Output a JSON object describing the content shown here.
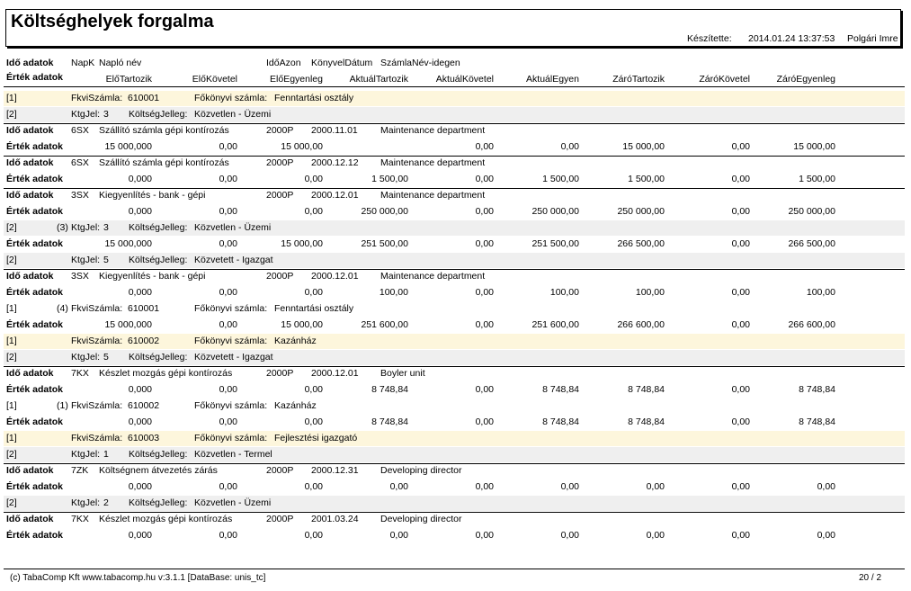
{
  "header": {
    "title": "Költséghelyek forgalma",
    "created_label": "Készítette:",
    "created_at": "2014.01.24 13:37:53",
    "created_by": "Polgári Imre"
  },
  "columns": {
    "row1": [
      "Idő adatok",
      "NapK",
      "Napló név",
      "IdőAzon",
      "KönyvelDátum",
      "SzámlaNév-idegen"
    ],
    "row2": [
      "Érték adatok",
      "ElőTartozik",
      "ElőKövetel",
      "ElőEgyenleg",
      "AktuálTartozik",
      "AktuálKövetel",
      "AktuálEgyen",
      "ZáróTartozik",
      "ZáróKövetel",
      "ZáróEgyenleg"
    ]
  },
  "rows": [
    {
      "type": "group1",
      "level": "[1]",
      "count": "",
      "k1": "FkviSzámla:",
      "v1": "610001",
      "k2": "Főkönyvi számla:",
      "v2": "Fenntartási osztály"
    },
    {
      "type": "group2",
      "level": "[2]",
      "count": "",
      "k1": "KtgJel:",
      "v1": "3",
      "k2": "KöltségJelleg:",
      "v2": "Közvetlen - Üzemi"
    },
    {
      "type": "ido",
      "label": "Idő adatok",
      "napk": "6SX",
      "nev": "Szállító számla gépi kontírozás",
      "azon": "2000P",
      "datum": "2000.11.01",
      "idegen": "Maintenance department"
    },
    {
      "type": "ertek",
      "label": "Érték adatok",
      "vals": [
        "15 000,000",
        "0,00",
        "15 000,00",
        "",
        "0,00",
        "0,00",
        "15 000,00",
        "0,00",
        "15 000,00"
      ]
    },
    {
      "type": "ido",
      "label": "Idő adatok",
      "napk": "6SX",
      "nev": "Szállító számla gépi kontírozás",
      "azon": "2000P",
      "datum": "2000.12.12",
      "idegen": "Maintenance department"
    },
    {
      "type": "ertek",
      "label": "Érték adatok",
      "vals": [
        "0,000",
        "0,00",
        "0,00",
        "1 500,00",
        "0,00",
        "1 500,00",
        "1 500,00",
        "0,00",
        "1 500,00"
      ]
    },
    {
      "type": "ido",
      "label": "Idő adatok",
      "napk": "3SX",
      "nev": "Kiegyenlítés - bank - gépi",
      "azon": "2000P",
      "datum": "2000.12.01",
      "idegen": "Maintenance department"
    },
    {
      "type": "ertek",
      "label": "Érték adatok",
      "vals": [
        "0,000",
        "0,00",
        "0,00",
        "250 000,00",
        "0,00",
        "250 000,00",
        "250 000,00",
        "0,00",
        "250 000,00"
      ]
    },
    {
      "type": "group2",
      "level": "[2]",
      "count": "(3)",
      "k1": "KtgJel:",
      "v1": "3",
      "k2": "KöltségJelleg:",
      "v2": "Közvetlen - Üzemi"
    },
    {
      "type": "ertek",
      "label": "Érték adatok",
      "vals": [
        "15 000,000",
        "0,00",
        "15 000,00",
        "251 500,00",
        "0,00",
        "251 500,00",
        "266 500,00",
        "0,00",
        "266 500,00"
      ]
    },
    {
      "type": "group2",
      "level": "[2]",
      "count": "",
      "k1": "KtgJel:",
      "v1": "5",
      "k2": "KöltségJelleg:",
      "v2": "Közvetett - Igazgat"
    },
    {
      "type": "ido",
      "label": "Idő adatok",
      "napk": "3SX",
      "nev": "Kiegyenlítés - bank - gépi",
      "azon": "2000P",
      "datum": "2000.12.01",
      "idegen": "Maintenance department"
    },
    {
      "type": "ertek",
      "label": "Érték adatok",
      "vals": [
        "0,000",
        "0,00",
        "0,00",
        "100,00",
        "0,00",
        "100,00",
        "100,00",
        "0,00",
        "100,00"
      ]
    },
    {
      "type": "group1plain",
      "level": "[1]",
      "count": "(4)",
      "k1": "FkviSzámla:",
      "v1": "610001",
      "k2": "Főkönyvi számla:",
      "v2": "Fenntartási osztály"
    },
    {
      "type": "ertek",
      "label": "Érték adatok",
      "vals": [
        "15 000,000",
        "0,00",
        "15 000,00",
        "251 600,00",
        "0,00",
        "251 600,00",
        "266 600,00",
        "0,00",
        "266 600,00"
      ]
    },
    {
      "type": "group1",
      "level": "[1]",
      "count": "",
      "k1": "FkviSzámla:",
      "v1": "610002",
      "k2": "Főkönyvi számla:",
      "v2": "Kazánház"
    },
    {
      "type": "group2",
      "level": "[2]",
      "count": "",
      "k1": "KtgJel:",
      "v1": "5",
      "k2": "KöltségJelleg:",
      "v2": "Közvetett - Igazgat"
    },
    {
      "type": "ido",
      "label": "Idő adatok",
      "napk": "7KX",
      "nev": "Készlet mozgás gépi kontírozás",
      "azon": "2000P",
      "datum": "2000.12.01",
      "idegen": "Boyler unit"
    },
    {
      "type": "ertek",
      "label": "Érték adatok",
      "vals": [
        "0,000",
        "0,00",
        "0,00",
        "8 748,84",
        "0,00",
        "8 748,84",
        "8 748,84",
        "0,00",
        "8 748,84"
      ]
    },
    {
      "type": "group1plain",
      "level": "[1]",
      "count": "(1)",
      "k1": "FkviSzámla:",
      "v1": "610002",
      "k2": "Főkönyvi számla:",
      "v2": "Kazánház"
    },
    {
      "type": "ertek",
      "label": "Érték adatok",
      "vals": [
        "0,000",
        "0,00",
        "0,00",
        "8 748,84",
        "0,00",
        "8 748,84",
        "8 748,84",
        "0,00",
        "8 748,84"
      ]
    },
    {
      "type": "group1",
      "level": "[1]",
      "count": "",
      "k1": "FkviSzámla:",
      "v1": "610003",
      "k2": "Főkönyvi számla:",
      "v2": "Fejlesztési igazgató"
    },
    {
      "type": "group2",
      "level": "[2]",
      "count": "",
      "k1": "KtgJel:",
      "v1": "1",
      "k2": "KöltségJelleg:",
      "v2": "Közvetlen - Termel"
    },
    {
      "type": "ido",
      "label": "Idő adatok",
      "napk": "7ZK",
      "nev": "Költségnem átvezetés zárás",
      "azon": "2000P",
      "datum": "2000.12.31",
      "idegen": "Developing director"
    },
    {
      "type": "ertek",
      "label": "Érték adatok",
      "vals": [
        "0,000",
        "0,00",
        "0,00",
        "0,00",
        "0,00",
        "0,00",
        "0,00",
        "0,00",
        "0,00"
      ]
    },
    {
      "type": "group2",
      "level": "[2]",
      "count": "",
      "k1": "KtgJel:",
      "v1": "2",
      "k2": "KöltségJelleg:",
      "v2": "Közvetlen - Üzemi"
    },
    {
      "type": "ido",
      "label": "Idő adatok",
      "napk": "7KX",
      "nev": "Készlet mozgás gépi kontírozás",
      "azon": "2000P",
      "datum": "2001.03.24",
      "idegen": "Developing director"
    },
    {
      "type": "ertek",
      "label": "Érték adatok",
      "vals": [
        "0,000",
        "0,00",
        "0,00",
        "0,00",
        "0,00",
        "0,00",
        "0,00",
        "0,00",
        "0,00"
      ]
    }
  ],
  "footer": {
    "copyright": "(c) TabaComp Kft  www.tabacomp.hu  v:3.1.1 [DataBase: unis_tc]",
    "page": "20  / 2"
  }
}
